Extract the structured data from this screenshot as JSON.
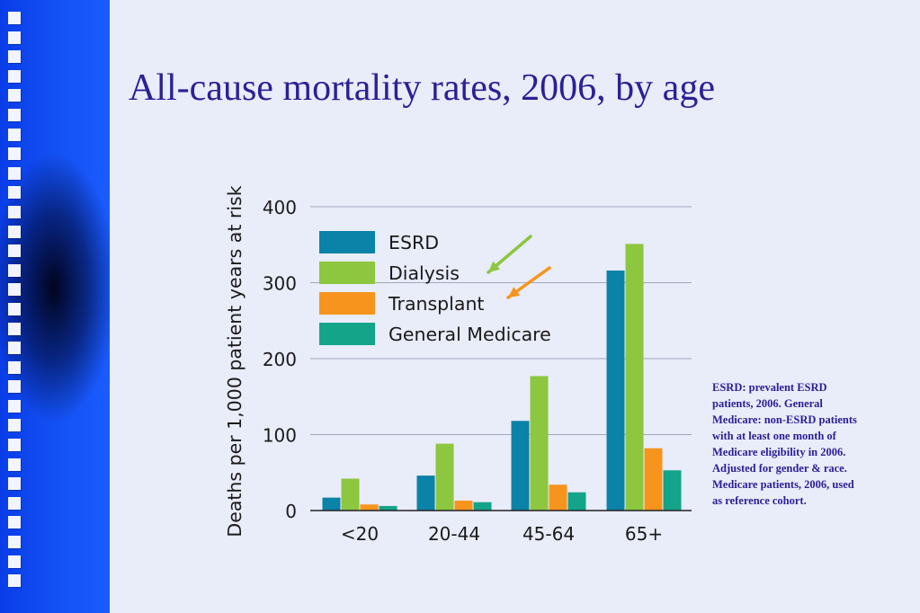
{
  "slide": {
    "title": "All-cause mortality rates, 2006, by age",
    "note": "ESRD: prevalent ESRD patients, 2006. General Medicare: non-ESRD patients with at least one month of Medicare eligibility in 2006. Adjusted for gender & race. Medicare patients, 2006, used as reference cohort."
  },
  "colors": {
    "title_text": "#2a2196",
    "sidebar": "#1452f5",
    "background": "#e9ecf9"
  },
  "chart_data": {
    "type": "bar",
    "title": "",
    "xlabel": "",
    "ylabel": "Deaths per 1,000 patient years at risk",
    "ylim": [
      0,
      400
    ],
    "yticks": [
      0,
      100,
      200,
      300,
      400
    ],
    "grid": true,
    "legend_position": "top-left",
    "categories": [
      "<20",
      "20-44",
      "45-64",
      "65+"
    ],
    "series": [
      {
        "name": "ESRD",
        "color": "#0b82a8",
        "values": [
          17,
          46,
          118,
          316
        ]
      },
      {
        "name": "Dialysis",
        "color": "#8dc63f",
        "values": [
          42,
          88,
          177,
          351
        ]
      },
      {
        "name": "Transplant",
        "color": "#f7941d",
        "values": [
          8,
          13,
          34,
          82
        ]
      },
      {
        "name": "General Medicare",
        "color": "#14a48a",
        "values": [
          6,
          11,
          24,
          53
        ]
      }
    ],
    "annotations": [
      {
        "type": "arrow",
        "points_to": "Dialysis",
        "color": "#8dc63f"
      },
      {
        "type": "arrow",
        "points_to": "Transplant",
        "color": "#f7941d"
      }
    ]
  }
}
